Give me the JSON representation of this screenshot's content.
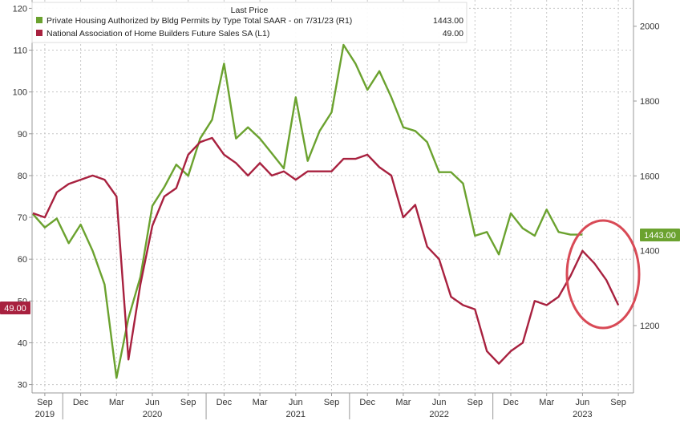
{
  "chart_data": {
    "type": "line",
    "legend_header": "Last Price",
    "legend_placement": "top-left",
    "grid": true,
    "x_ticks": [
      "Sep",
      "Dec",
      "Mar",
      "Jun",
      "Sep",
      "Dec",
      "Mar",
      "Jun",
      "Sep",
      "Dec",
      "Mar",
      "Jun",
      "Sep",
      "Dec",
      "Mar",
      "Jun",
      "Sep"
    ],
    "x_years": [
      "2019",
      "2020",
      "2021",
      "2022",
      "2023"
    ],
    "ylim_left": [
      28,
      122
    ],
    "yticks_left": [
      "30",
      "40",
      "50",
      "60",
      "70",
      "80",
      "90",
      "100",
      "110",
      "120"
    ],
    "ylim_right": [
      1020,
      2070
    ],
    "yticks_right": [
      "1200",
      "1400",
      "1600",
      "1800",
      "2000"
    ],
    "colors": {
      "permits": "#6ba22f",
      "nahb": "#a8213f",
      "annotation_circle": "#d84a56"
    },
    "x": [
      "2019-08",
      "2019-09",
      "2019-10",
      "2019-11",
      "2019-12",
      "2020-01",
      "2020-02",
      "2020-03",
      "2020-04",
      "2020-05",
      "2020-06",
      "2020-07",
      "2020-08",
      "2020-09",
      "2020-10",
      "2020-11",
      "2020-12",
      "2021-01",
      "2021-02",
      "2021-03",
      "2021-04",
      "2021-05",
      "2021-06",
      "2021-07",
      "2021-08",
      "2021-09",
      "2021-10",
      "2021-11",
      "2021-12",
      "2022-01",
      "2022-02",
      "2022-03",
      "2022-04",
      "2022-05",
      "2022-06",
      "2022-07",
      "2022-08",
      "2022-09",
      "2022-10",
      "2022-11",
      "2022-12",
      "2023-01",
      "2023-02",
      "2023-03",
      "2023-04",
      "2023-05",
      "2023-06",
      "2023-07",
      "2023-08",
      "2023-09"
    ],
    "series": [
      {
        "name": "Private Housing Authorized by Bldg Permits by Type Total SAAR - on 7/31/23 (R1)",
        "last_value_label": "1443.00",
        "axis": "right",
        "values": [
          1498,
          1462,
          1486,
          1420,
          1470,
          1400,
          1310,
          1060,
          1220,
          1330,
          1520,
          1570,
          1630,
          1600,
          1700,
          1750,
          1900,
          1700,
          1730,
          1700,
          1660,
          1620,
          1810,
          1640,
          1720,
          1770,
          1950,
          1900,
          1830,
          1880,
          1810,
          1730,
          1720,
          1690,
          1610,
          1610,
          1580,
          1440,
          1450,
          1390,
          1500,
          1460,
          1440,
          1510,
          1450,
          1443,
          1443,
          null,
          null,
          null
        ]
      },
      {
        "name": "National Association of Home Builders Future Sales SA (L1)",
        "last_value_label": "49.00",
        "axis": "left",
        "values": [
          71,
          70,
          76,
          78,
          79,
          80,
          79,
          75,
          36,
          54,
          68,
          75,
          77,
          85,
          88,
          89,
          85,
          83,
          80,
          83,
          80,
          81,
          79,
          81,
          81,
          81,
          84,
          84,
          85,
          82,
          80,
          70,
          73,
          63,
          60,
          51,
          49,
          48,
          38,
          35,
          38,
          40,
          50,
          49,
          51,
          56,
          62,
          59,
          55,
          49
        ]
      }
    ],
    "annotation": "ellipse highlighting the latest values"
  }
}
